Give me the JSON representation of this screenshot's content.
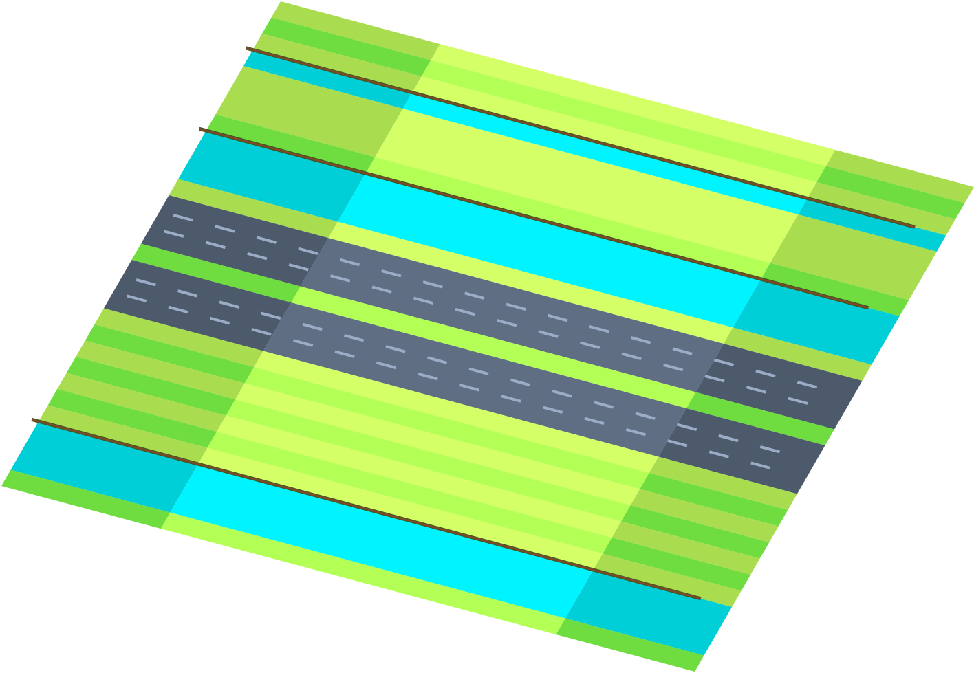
{
  "board": {
    "rows": [
      {
        "type": "grass",
        "shade": "light"
      },
      {
        "type": "grass",
        "shade": "dark"
      },
      {
        "type": "grass",
        "shade": "light"
      },
      {
        "type": "river",
        "span": 1
      },
      {
        "type": "grass",
        "shade": "light",
        "span": 3
      },
      {
        "type": "grass",
        "shade": "dark"
      },
      {
        "type": "river",
        "span": 3
      },
      {
        "type": "grass",
        "shade": "light"
      },
      {
        "type": "road",
        "span": 3,
        "lane_markings": true
      },
      {
        "type": "grass",
        "shade": "dark"
      },
      {
        "type": "road",
        "span": 3,
        "lane_markings": true
      },
      {
        "type": "grass",
        "shade": "light"
      },
      {
        "type": "grass",
        "shade": "dark"
      },
      {
        "type": "grass",
        "shade": "light"
      },
      {
        "type": "grass",
        "shade": "dark"
      },
      {
        "type": "grass",
        "shade": "light"
      },
      {
        "type": "grass",
        "shade": "dark"
      },
      {
        "type": "grass",
        "shade": "light"
      },
      {
        "type": "river",
        "span": 3
      },
      {
        "type": "grass",
        "shade": "dark"
      }
    ],
    "river_edges_with_rails": true
  },
  "colors": {
    "grass_light_side": "#a9dd4f",
    "grass_dark_side": "#6fdc40",
    "grass_light_center": "#d4ff66",
    "grass_dark_center": "#b4ff55",
    "river_side": "#00cfd8",
    "river_center": "#00f4ff",
    "road_side": "#4c5a6c",
    "road_center": "#5f6e83",
    "lane_marking": "#9aacc6",
    "rail": "#7a4a2a",
    "rail_shadow": "#3d5a1a"
  }
}
